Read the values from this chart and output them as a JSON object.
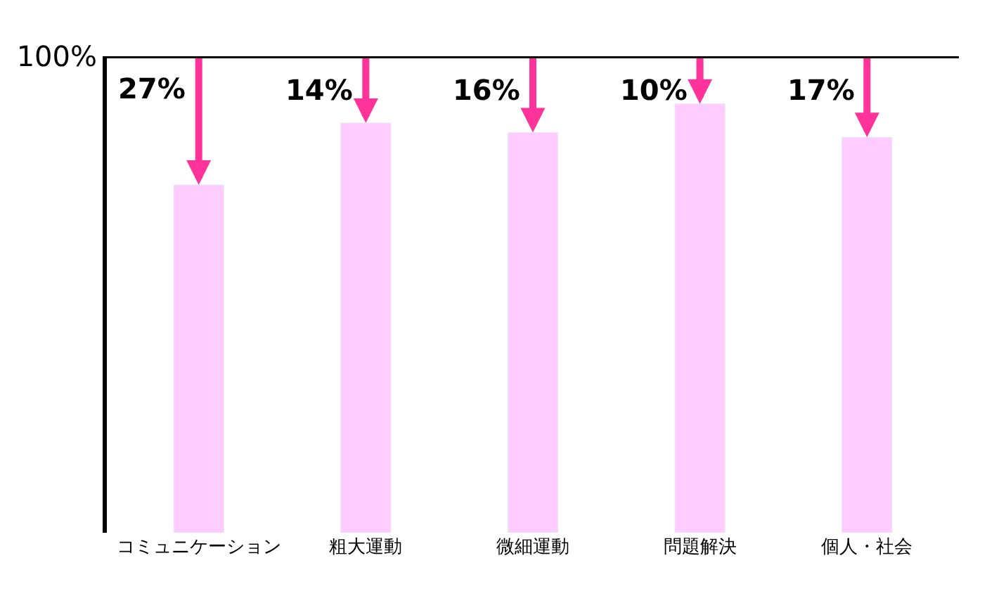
{
  "chart_data": {
    "type": "bar",
    "categories": [
      "コミュニケーション",
      "粗大運動",
      "微細運動",
      "問題解決",
      "個人・社会"
    ],
    "values": [
      73,
      86,
      84,
      90,
      83
    ],
    "color": "#ffccff",
    "ylim": [
      0,
      100
    ],
    "yticks": [
      {
        "value": 100,
        "label": "100%"
      }
    ],
    "ref_lines": [
      {
        "axis": "y",
        "value": 100,
        "label": null,
        "color": "#000000"
      }
    ],
    "annotations": [
      {
        "text": "27%",
        "x": "コミュニケーション",
        "y": 73
      },
      {
        "text": "14%",
        "x": "粗大運動",
        "y": 86
      },
      {
        "text": "16%",
        "x": "微細運動",
        "y": 84
      },
      {
        "text": "10%",
        "x": "問題解決",
        "y": 90
      },
      {
        "text": "17%",
        "x": "個人・社会",
        "y": 83
      }
    ]
  }
}
